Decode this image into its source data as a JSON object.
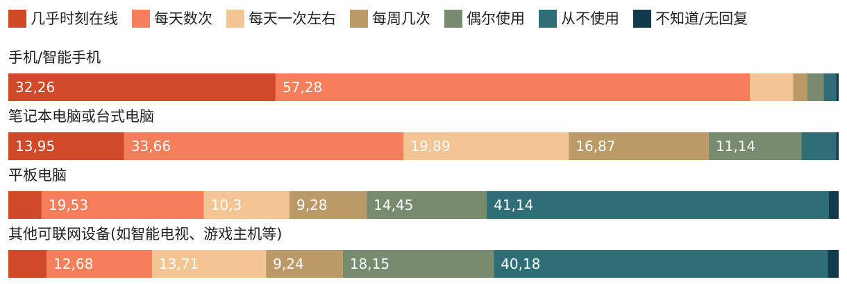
{
  "chart_data": {
    "type": "bar",
    "orientation": "horizontal",
    "stacked": true,
    "legend_position": "top",
    "series": [
      {
        "name": "几乎时刻在线",
        "color": "#D04A2A"
      },
      {
        "name": "每天数次",
        "color": "#F47F5A"
      },
      {
        "name": "每天一次左右",
        "color": "#F2C592"
      },
      {
        "name": "每周几次",
        "color": "#BC9A67"
      },
      {
        "name": "偶尔使用",
        "color": "#778B6E"
      },
      {
        "name": "从不使用",
        "color": "#2F6D77"
      },
      {
        "name": "不知道/无回复",
        "color": "#0F3B4D"
      }
    ],
    "categories": [
      {
        "title": "手机/智能手机",
        "values": [
          32.26,
          57.28,
          5.2,
          1.7,
          2.0,
          1.5,
          0.3
        ],
        "labels": [
          "32,26",
          "57,28",
          "",
          "",
          "",
          "",
          ""
        ]
      },
      {
        "title": "笔记本电脑或台式电脑",
        "values": [
          13.95,
          33.66,
          19.89,
          16.87,
          11.14,
          4.2,
          0.3
        ],
        "labels": [
          "13,95",
          "33,66",
          "19,89",
          "16,87",
          "11,14",
          "",
          ""
        ]
      },
      {
        "title": "平板电脑",
        "values": [
          4.0,
          19.53,
          10.3,
          9.28,
          14.45,
          41.14,
          1.2
        ],
        "labels": [
          "",
          "19,53",
          "10,3",
          "9,28",
          "14,45",
          "41,14",
          ""
        ]
      },
      {
        "title": "其他可联网设备(如智能电视、游戏主机等)",
        "values": [
          4.6,
          12.68,
          13.71,
          9.24,
          18.15,
          40.18,
          1.3
        ],
        "labels": [
          "",
          "12,68",
          "13,71",
          "9,24",
          "18,15",
          "40,18",
          ""
        ]
      }
    ]
  }
}
